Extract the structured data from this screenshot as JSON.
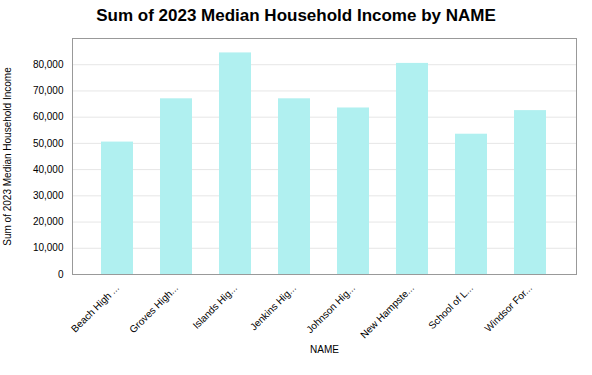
{
  "chart_data": {
    "type": "bar",
    "title": "Sum of 2023 Median Household Income by NAME",
    "xlabel": "NAME",
    "ylabel": "Sum of 2023 Median Household Income",
    "categories": [
      "Beach High ...",
      "Groves High...",
      "Islands Hig...",
      "Jenkins Hig...",
      "Johnson Hig...",
      "New Hampste...",
      "School of L...",
      "Windsor For..."
    ],
    "values": [
      50500,
      67000,
      84500,
      67000,
      63500,
      80500,
      53500,
      62500
    ],
    "color": "#b0f0f0",
    "ylim": [
      0,
      90000
    ],
    "yticks": [
      0,
      {
        "value": 10000,
        "label": "10,000"
      },
      {
        "value": 20000,
        "label": "20,000"
      },
      {
        "value": 30000,
        "label": "30,000"
      },
      {
        "value": 40000,
        "label": "40,000"
      },
      {
        "value": 50000,
        "label": "50,000"
      },
      {
        "value": 60000,
        "label": "60,000"
      },
      {
        "value": 70000,
        "label": "70,000"
      },
      {
        "value": 80000,
        "label": "80,000"
      }
    ],
    "grid": true
  }
}
